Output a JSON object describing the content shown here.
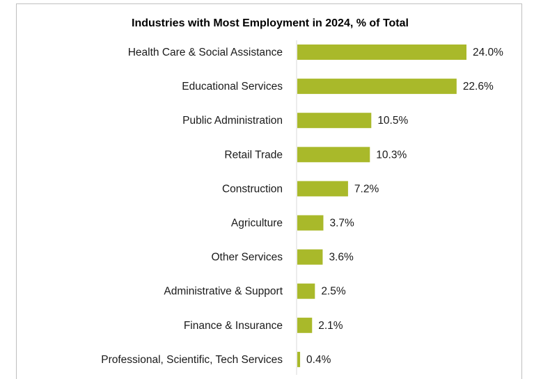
{
  "chart_data": {
    "type": "bar",
    "orientation": "horizontal",
    "title": "Industries with Most Employment in 2024, % of Total",
    "xlabel": "",
    "ylabel": "",
    "categories": [
      "Health Care & Social Assistance",
      "Educational Services",
      "Public Administration",
      "Retail Trade",
      "Construction",
      "Agriculture",
      "Other Services",
      "Administrative & Support",
      "Finance & Insurance",
      "Professional, Scientific, Tech Services"
    ],
    "values": [
      24.0,
      22.6,
      10.5,
      10.3,
      7.2,
      3.7,
      3.6,
      2.5,
      2.1,
      0.4
    ],
    "value_labels": [
      "24.0%",
      "22.6%",
      "10.5%",
      "10.3%",
      "7.2%",
      "3.7%",
      "3.6%",
      "2.5%",
      "2.1%",
      "0.4%"
    ],
    "xlim": [
      0,
      26
    ],
    "grid": false,
    "legend": "none",
    "bar_color": "#a9b92a",
    "axis_color": "#d9d9d9"
  }
}
